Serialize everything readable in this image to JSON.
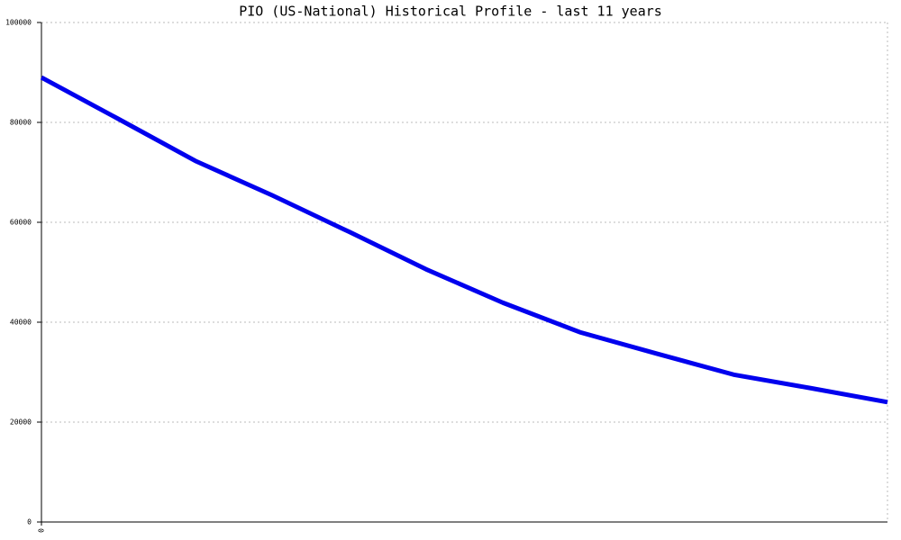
{
  "chart_data": {
    "type": "line",
    "title": "PIO (US-National) Historical Profile - last 11 years",
    "x": [
      0,
      1,
      2,
      3,
      4,
      5,
      6,
      7,
      8,
      9,
      10,
      11
    ],
    "values": [
      89000,
      80700,
      72300,
      65400,
      58100,
      50600,
      43900,
      38000,
      33700,
      29500,
      26800,
      24000
    ],
    "color": "#0000ee",
    "xlim": [
      0,
      11
    ],
    "xticks": [
      0
    ],
    "ylim": [
      0,
      100000
    ],
    "yticks": [
      0,
      20000,
      40000,
      60000,
      80000,
      100000
    ],
    "grid": true
  }
}
